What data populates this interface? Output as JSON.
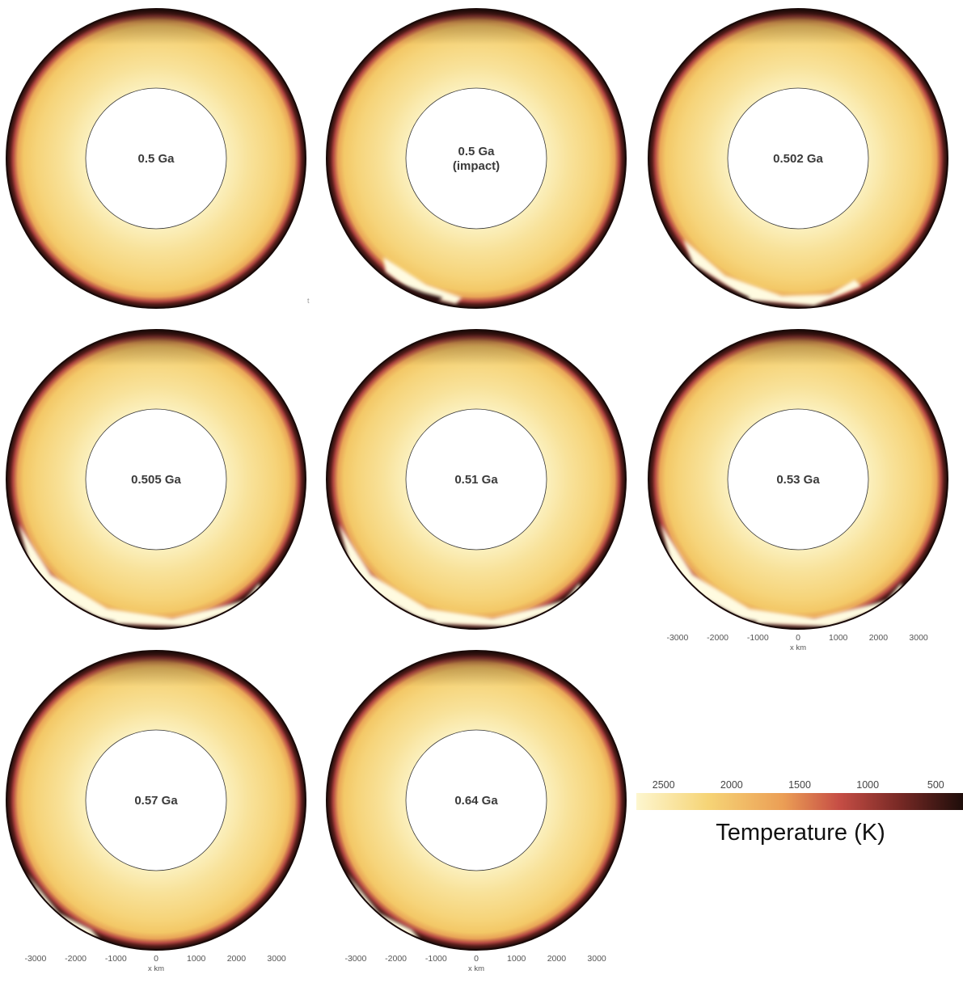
{
  "panels": [
    {
      "label_lines": [
        "0.5 Ga"
      ],
      "impact": 0
    },
    {
      "label_lines": [
        "0.5 Ga",
        "(impact)"
      ],
      "impact": 1
    },
    {
      "label_lines": [
        "0.502 Ga"
      ],
      "impact": 2
    },
    {
      "label_lines": [
        "0.505 Ga"
      ],
      "impact": 3
    },
    {
      "label_lines": [
        "0.51 Ga"
      ],
      "impact": 3
    },
    {
      "label_lines": [
        "0.53 Ga"
      ],
      "impact": 3
    },
    {
      "label_lines": [
        "0.57 Ga"
      ],
      "impact": 4
    },
    {
      "label_lines": [
        "0.64 Ga"
      ],
      "impact": 4
    }
  ],
  "x_axis": {
    "ticks": [
      "-3000",
      "-2000",
      "-1000",
      "0",
      "1000",
      "2000",
      "3000"
    ],
    "tick_values": [
      -3000,
      -2000,
      -1000,
      0,
      1000,
      2000,
      3000
    ],
    "label": "x km"
  },
  "colorbar": {
    "title": "Temperature (K)",
    "tick_labels": [
      "2500",
      "2000",
      "1500",
      "1000",
      "500"
    ],
    "tick_values": [
      2500,
      2000,
      1500,
      1000,
      500
    ],
    "range": [
      2700,
      300
    ],
    "colors": [
      "#fdf6cf",
      "#f6d476",
      "#eb9e55",
      "#c64e45",
      "#7a2a26",
      "#1e0d0a"
    ]
  },
  "stray_mark": "t"
}
